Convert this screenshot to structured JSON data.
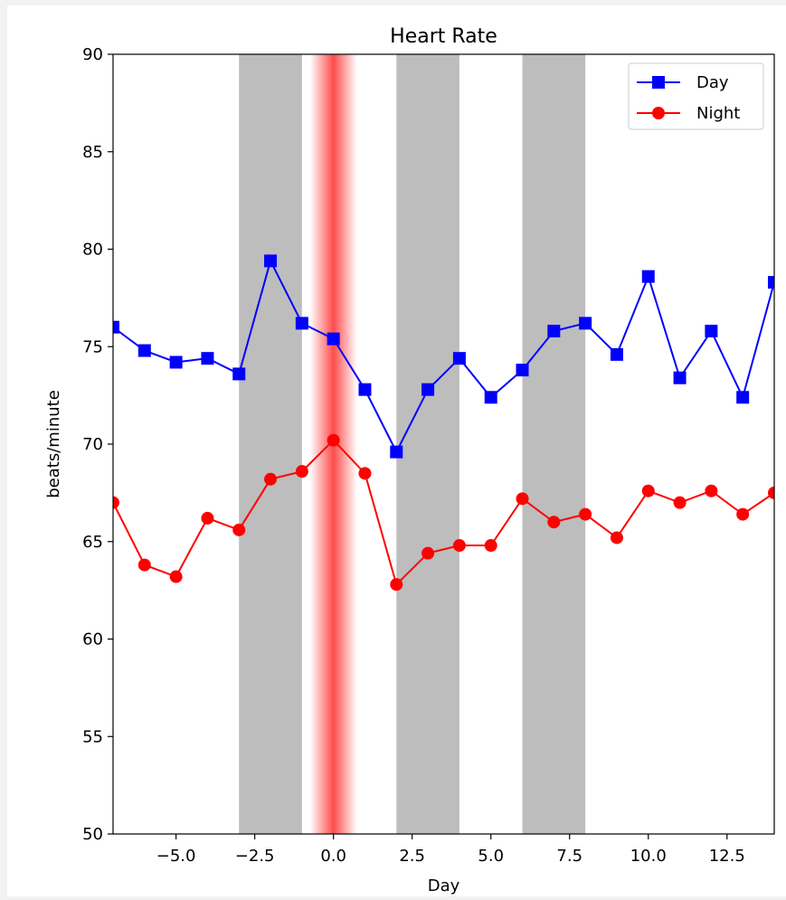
{
  "chart_data": {
    "type": "line",
    "title": "Heart Rate",
    "xlabel": "Day",
    "ylabel": "beats/minute",
    "xlim": [
      -7,
      14
    ],
    "ylim": [
      50,
      90
    ],
    "x_ticks": [
      -5.0,
      -2.5,
      0.0,
      2.5,
      5.0,
      7.5,
      10.0,
      12.5
    ],
    "x_tick_labels": [
      "−5.0",
      "−2.5",
      "0.0",
      "2.5",
      "5.0",
      "7.5",
      "10.0",
      "12.5"
    ],
    "y_ticks": [
      50,
      55,
      60,
      65,
      70,
      75,
      80,
      85,
      90
    ],
    "y_tick_labels": [
      "50",
      "55",
      "60",
      "65",
      "70",
      "75",
      "80",
      "85",
      "90"
    ],
    "legend_position": "top-right",
    "shaded_regions": [
      {
        "x_start": -3,
        "x_end": -1,
        "color": "#bdbdbd"
      },
      {
        "x_start": 2,
        "x_end": 4,
        "color": "#bdbdbd"
      },
      {
        "x_start": 6,
        "x_end": 8,
        "color": "#bdbdbd"
      }
    ],
    "highlight_band": {
      "center": 0,
      "half_width": 0.75,
      "color": "#ff0000"
    },
    "x": [
      -7,
      -6,
      -5,
      -4,
      -3,
      -2,
      -1,
      0,
      1,
      2,
      3,
      4,
      5,
      6,
      7,
      8,
      9,
      10,
      11,
      12,
      13,
      14
    ],
    "series": [
      {
        "name": "Day",
        "color": "#0000ff",
        "marker": "square",
        "values": [
          76.0,
          74.8,
          74.2,
          74.4,
          73.6,
          79.4,
          76.2,
          75.4,
          72.8,
          69.6,
          72.8,
          74.4,
          72.4,
          73.8,
          75.8,
          76.2,
          74.6,
          78.6,
          73.4,
          75.8,
          72.4,
          78.3
        ]
      },
      {
        "name": "Night",
        "color": "#ff0000",
        "marker": "circle",
        "values": [
          67.0,
          63.8,
          63.2,
          66.2,
          65.6,
          68.2,
          68.6,
          70.2,
          68.5,
          62.8,
          64.4,
          64.8,
          64.8,
          67.2,
          66.0,
          66.4,
          65.2,
          67.6,
          67.0,
          67.6,
          66.4,
          67.5
        ]
      }
    ]
  }
}
